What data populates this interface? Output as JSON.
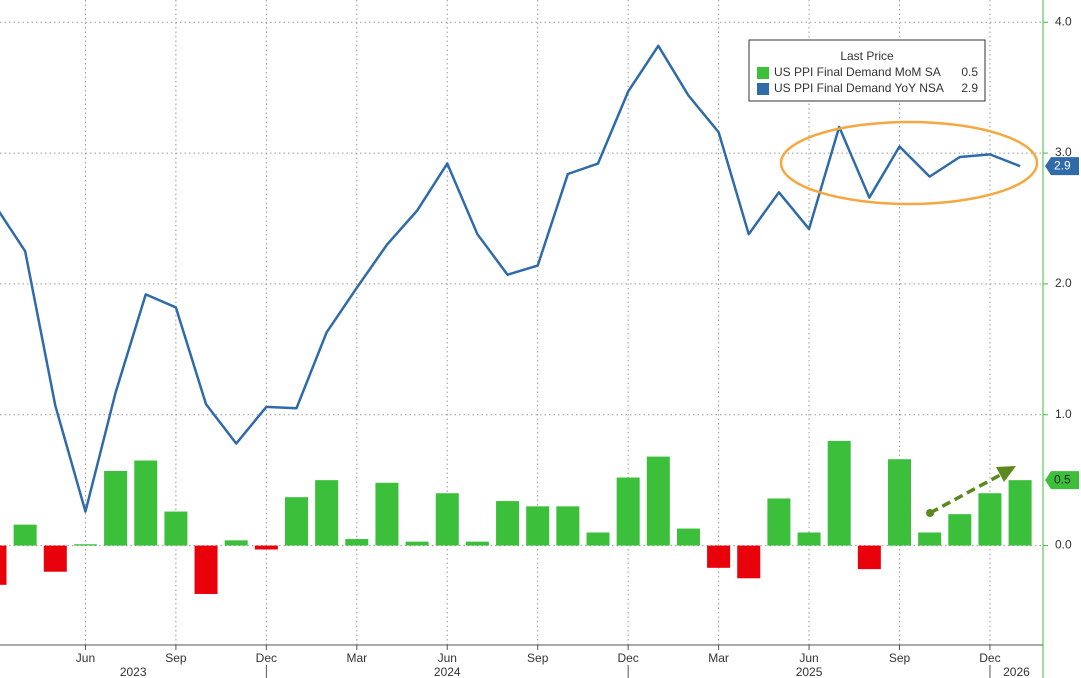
{
  "chart_data": {
    "type": "combo",
    "legend_title": "Last Price",
    "categories": [
      null,
      null,
      null,
      "Jun",
      null,
      null,
      "Sep",
      null,
      null,
      "Dec",
      null,
      null,
      "Mar",
      null,
      null,
      "Jun",
      null,
      null,
      "Sep",
      null,
      null,
      "Dec",
      null,
      null,
      "Mar",
      null,
      null,
      "Jun",
      null,
      null,
      "Sep",
      null,
      null,
      "Dec",
      null
    ],
    "year_groups": [
      {
        "label": "2023",
        "months": 10
      },
      {
        "label": "2024",
        "months": 12
      },
      {
        "label": "2025",
        "months": 12
      },
      {
        "label": "2026",
        "months": 1
      }
    ],
    "series": [
      {
        "name": "US PPI Final Demand MoM SA",
        "type": "bar",
        "color": "#3cbf3a",
        "negative_color": "#e8000b",
        "values": [
          -0.3,
          0.16,
          -0.2,
          0.01,
          0.57,
          0.65,
          0.26,
          -0.37,
          0.04,
          -0.03,
          0.37,
          0.5,
          0.05,
          0.48,
          0.03,
          0.4,
          0.03,
          0.34,
          0.3,
          0.3,
          0.1,
          0.52,
          0.68,
          0.13,
          -0.17,
          -0.25,
          0.36,
          0.1,
          0.8,
          -0.18,
          0.66,
          0.1,
          0.24,
          0.4,
          0.5
        ]
      },
      {
        "name": "US PPI Final Demand YoY NSA",
        "type": "line",
        "color": "#2e6ba8",
        "values": [
          2.6,
          2.25,
          1.07,
          0.26,
          1.17,
          1.92,
          1.82,
          1.08,
          0.78,
          1.06,
          1.05,
          1.63,
          1.97,
          2.3,
          2.56,
          2.92,
          2.38,
          2.07,
          2.14,
          2.84,
          2.92,
          3.47,
          3.82,
          3.44,
          3.16,
          2.38,
          2.7,
          2.42,
          3.2,
          2.66,
          3.05,
          2.82,
          2.97,
          2.99,
          2.9
        ]
      }
    ],
    "ylim": [
      -0.76,
      4.17
    ],
    "yticks": [
      {
        "value": 0,
        "label": "0.0"
      },
      {
        "value": 1,
        "label": "1.0"
      },
      {
        "value": 2,
        "label": "2.0"
      },
      {
        "value": 3,
        "label": "3.0"
      },
      {
        "value": 4,
        "label": "4.0"
      }
    ],
    "grid": true
  }
}
